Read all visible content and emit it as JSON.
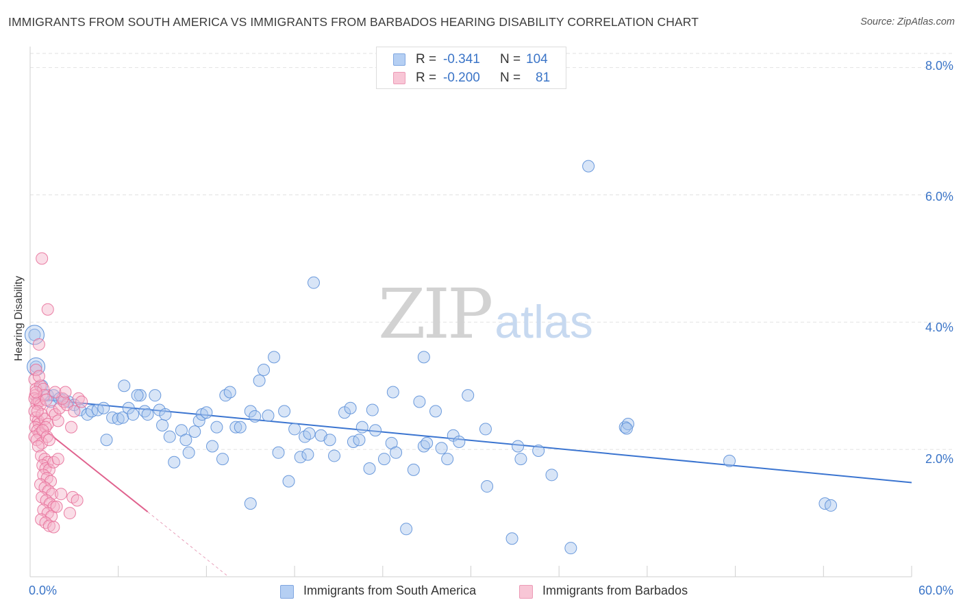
{
  "title": "IMMIGRANTS FROM SOUTH AMERICA VS IMMIGRANTS FROM BARBADOS HEARING DISABILITY CORRELATION CHART",
  "source": "Source: ZipAtlas.com",
  "watermark": {
    "zip": "ZIP",
    "atlas": "atlas"
  },
  "colors": {
    "blue": "#5b8fd8",
    "blue_fill": "#a9c5ee",
    "pink": "#e8709a",
    "pink_fill": "#f5b4c9",
    "axis_text": "#3a74c7"
  },
  "legend": {
    "r_label": "R =",
    "n_label": "N =",
    "rows": [
      {
        "r": "-0.341",
        "n": "104"
      },
      {
        "r": "-0.200",
        "n": "81"
      }
    ]
  },
  "chart_data": {
    "type": "scatter",
    "title": "IMMIGRANTS FROM SOUTH AMERICA VS IMMIGRANTS FROM BARBADOS HEARING DISABILITY CORRELATION CHART",
    "xlabel": "",
    "ylabel": "Hearing Disability",
    "xlim": [
      0,
      60
    ],
    "ylim": [
      0,
      8.2
    ],
    "x_tick_labels": [
      "0.0%",
      "60.0%"
    ],
    "y_ticks": [
      2,
      4,
      6,
      8
    ],
    "y_tick_labels": [
      "2.0%",
      "4.0%",
      "6.0%",
      "8.0%"
    ],
    "grid": true,
    "series": [
      {
        "name": "Immigrants from South America",
        "color": "#5b8fd8",
        "trend": {
          "x": [
            0.2,
            60
          ],
          "y": [
            2.8,
            1.48
          ]
        },
        "points": [
          [
            0.3,
            3.8
          ],
          [
            0.4,
            3.3
          ],
          [
            0.8,
            3.0
          ],
          [
            1.2,
            2.85
          ],
          [
            1.6,
            2.85
          ],
          [
            1.4,
            2.75
          ],
          [
            2.0,
            2.8
          ],
          [
            2.3,
            2.78
          ],
          [
            2.6,
            2.75
          ],
          [
            3.0,
            2.7
          ],
          [
            3.4,
            2.62
          ],
          [
            3.9,
            2.55
          ],
          [
            4.2,
            2.6
          ],
          [
            4.6,
            2.62
          ],
          [
            5.0,
            2.65
          ],
          [
            5.2,
            2.15
          ],
          [
            5.6,
            2.5
          ],
          [
            6.0,
            2.48
          ],
          [
            6.3,
            2.5
          ],
          [
            6.7,
            2.65
          ],
          [
            6.4,
            3.0
          ],
          [
            7.0,
            2.55
          ],
          [
            7.5,
            2.85
          ],
          [
            7.3,
            2.85
          ],
          [
            7.8,
            2.6
          ],
          [
            8.0,
            2.55
          ],
          [
            8.5,
            2.85
          ],
          [
            8.8,
            2.62
          ],
          [
            9.0,
            2.38
          ],
          [
            9.2,
            2.55
          ],
          [
            9.5,
            2.2
          ],
          [
            9.8,
            1.8
          ],
          [
            10.3,
            2.3
          ],
          [
            10.6,
            2.15
          ],
          [
            10.8,
            1.95
          ],
          [
            11.2,
            2.28
          ],
          [
            11.5,
            2.45
          ],
          [
            11.7,
            2.55
          ],
          [
            12.0,
            2.58
          ],
          [
            12.4,
            2.05
          ],
          [
            12.7,
            2.35
          ],
          [
            13.1,
            1.85
          ],
          [
            13.3,
            2.85
          ],
          [
            13.6,
            2.9
          ],
          [
            14.0,
            2.35
          ],
          [
            14.3,
            2.35
          ],
          [
            15.0,
            2.6
          ],
          [
            15.3,
            2.52
          ],
          [
            15.0,
            1.15
          ],
          [
            15.6,
            3.08
          ],
          [
            15.9,
            3.25
          ],
          [
            16.2,
            2.53
          ],
          [
            16.6,
            3.45
          ],
          [
            17.3,
            2.6
          ],
          [
            16.9,
            1.95
          ],
          [
            17.6,
            1.5
          ],
          [
            18.0,
            2.32
          ],
          [
            18.4,
            1.88
          ],
          [
            18.7,
            2.2
          ],
          [
            18.9,
            1.92
          ],
          [
            19.0,
            2.25
          ],
          [
            19.3,
            4.62
          ],
          [
            19.8,
            2.22
          ],
          [
            20.4,
            2.15
          ],
          [
            20.7,
            1.9
          ],
          [
            21.4,
            2.58
          ],
          [
            21.8,
            2.65
          ],
          [
            22.0,
            2.12
          ],
          [
            22.4,
            2.15
          ],
          [
            22.6,
            2.35
          ],
          [
            23.1,
            1.7
          ],
          [
            23.3,
            2.62
          ],
          [
            23.5,
            2.3
          ],
          [
            24.1,
            1.85
          ],
          [
            24.6,
            2.1
          ],
          [
            24.7,
            2.9
          ],
          [
            24.9,
            1.95
          ],
          [
            25.6,
            0.75
          ],
          [
            26.1,
            1.68
          ],
          [
            26.5,
            2.75
          ],
          [
            26.8,
            2.05
          ],
          [
            27.0,
            2.1
          ],
          [
            26.8,
            3.45
          ],
          [
            27.6,
            2.6
          ],
          [
            28.0,
            2.02
          ],
          [
            28.4,
            1.85
          ],
          [
            28.8,
            2.22
          ],
          [
            29.2,
            2.12
          ],
          [
            29.8,
            2.85
          ],
          [
            31.0,
            2.32
          ],
          [
            31.1,
            1.42
          ],
          [
            32.8,
            0.6
          ],
          [
            33.2,
            2.05
          ],
          [
            33.4,
            1.85
          ],
          [
            34.6,
            1.98
          ],
          [
            35.5,
            1.6
          ],
          [
            36.8,
            0.45
          ],
          [
            38.0,
            6.45
          ],
          [
            40.5,
            2.35
          ],
          [
            40.7,
            2.4
          ],
          [
            47.6,
            1.82
          ],
          [
            54.1,
            1.15
          ],
          [
            54.5,
            1.12
          ],
          [
            40.6,
            2.33
          ]
        ]
      },
      {
        "name": "Immigrants from Barbados",
        "color": "#e8709a",
        "trend": {
          "x": [
            0.2,
            8.0
          ],
          "y": [
            2.45,
            1.02
          ]
        },
        "trend_dashed": {
          "x": [
            8.0,
            13.5
          ],
          "y": [
            1.02,
            0.0
          ]
        },
        "points": [
          [
            0.3,
            3.1
          ],
          [
            0.4,
            2.95
          ],
          [
            0.35,
            2.85
          ],
          [
            0.5,
            2.78
          ],
          [
            0.45,
            2.72
          ],
          [
            0.6,
            2.75
          ],
          [
            0.7,
            2.7
          ],
          [
            0.3,
            2.6
          ],
          [
            0.4,
            2.5
          ],
          [
            0.55,
            2.45
          ],
          [
            0.6,
            2.4
          ],
          [
            0.35,
            2.35
          ],
          [
            0.5,
            2.3
          ],
          [
            0.65,
            2.25
          ],
          [
            0.3,
            2.2
          ],
          [
            0.45,
            2.15
          ],
          [
            0.8,
            2.1
          ],
          [
            0.55,
            2.05
          ],
          [
            0.4,
            3.25
          ],
          [
            0.7,
            3.0
          ],
          [
            0.9,
            2.95
          ],
          [
            0.6,
            3.65
          ],
          [
            0.8,
            5.0
          ],
          [
            1.2,
            4.2
          ],
          [
            0.3,
            2.8
          ],
          [
            0.95,
            2.85
          ],
          [
            1.1,
            2.78
          ],
          [
            0.8,
            2.55
          ],
          [
            1.0,
            2.48
          ],
          [
            1.2,
            2.4
          ],
          [
            1.05,
            2.35
          ],
          [
            0.85,
            2.3
          ],
          [
            1.15,
            2.2
          ],
          [
            1.3,
            2.15
          ],
          [
            0.75,
            1.9
          ],
          [
            1.0,
            1.85
          ],
          [
            1.2,
            1.8
          ],
          [
            0.85,
            1.75
          ],
          [
            1.05,
            1.7
          ],
          [
            1.3,
            1.68
          ],
          [
            0.9,
            1.6
          ],
          [
            1.15,
            1.55
          ],
          [
            1.4,
            1.5
          ],
          [
            0.7,
            1.45
          ],
          [
            1.0,
            1.4
          ],
          [
            1.25,
            1.35
          ],
          [
            1.5,
            1.3
          ],
          [
            0.8,
            1.25
          ],
          [
            1.1,
            1.2
          ],
          [
            1.35,
            1.15
          ],
          [
            1.6,
            1.1
          ],
          [
            0.9,
            1.05
          ],
          [
            1.2,
            1.0
          ],
          [
            1.45,
            0.95
          ],
          [
            0.75,
            0.9
          ],
          [
            1.05,
            0.85
          ],
          [
            1.3,
            0.8
          ],
          [
            1.6,
            0.78
          ],
          [
            1.5,
            2.6
          ],
          [
            1.7,
            2.55
          ],
          [
            1.9,
            2.45
          ],
          [
            2.0,
            2.65
          ],
          [
            2.3,
            2.75
          ],
          [
            2.5,
            2.7
          ],
          [
            2.2,
            2.8
          ],
          [
            2.8,
            2.35
          ],
          [
            3.0,
            2.6
          ],
          [
            3.3,
            2.8
          ],
          [
            3.5,
            2.75
          ],
          [
            2.9,
            1.25
          ],
          [
            3.2,
            1.2
          ],
          [
            2.7,
            1.0
          ],
          [
            1.8,
            1.1
          ],
          [
            2.1,
            1.3
          ],
          [
            1.6,
            1.8
          ],
          [
            1.9,
            1.85
          ],
          [
            0.4,
            2.9
          ],
          [
            0.6,
            3.15
          ],
          [
            1.7,
            2.9
          ],
          [
            2.4,
            2.9
          ],
          [
            0.5,
            2.6
          ]
        ]
      }
    ]
  },
  "bottom_legend": [
    {
      "label": "Immigrants from South America"
    },
    {
      "label": "Immigrants from Barbados"
    }
  ]
}
